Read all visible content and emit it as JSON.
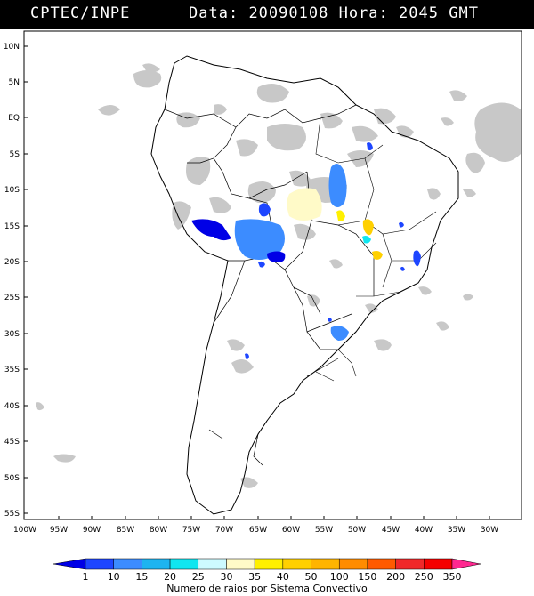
{
  "header": {
    "agency": "CPTEC/INPE",
    "date_label": "Data:",
    "date_value": "20090108",
    "hour_label": "Hora:",
    "hour_value": "2045",
    "timezone": "GMT"
  },
  "map": {
    "lat_labels": [
      "10N",
      "5N",
      "EQ",
      "5S",
      "10S",
      "15S",
      "20S",
      "25S",
      "30S",
      "35S",
      "40S",
      "45S",
      "50S",
      "55S"
    ],
    "lon_labels": [
      "100W",
      "95W",
      "90W",
      "85W",
      "80W",
      "75W",
      "70W",
      "65W",
      "60W",
      "55W",
      "50W",
      "45W",
      "40W",
      "35W",
      "30W"
    ],
    "cloud_color": "#c8c8c8",
    "land_fill": "#ffffff"
  },
  "legend": {
    "values": [
      "1",
      "10",
      "15",
      "20",
      "25",
      "30",
      "35",
      "40",
      "50",
      "100",
      "150",
      "200",
      "250",
      "350"
    ],
    "colors": [
      "#0000e6",
      "#1e46ff",
      "#3c8cff",
      "#1eb4f0",
      "#10e6f0",
      "#cdfaff",
      "#fffac8",
      "#fff000",
      "#ffd000",
      "#ffb400",
      "#ff8c00",
      "#ff5a00",
      "#f0282a",
      "#f50000",
      "#ff2890"
    ],
    "title": "Numero de raios por Sistema Convectivo"
  }
}
